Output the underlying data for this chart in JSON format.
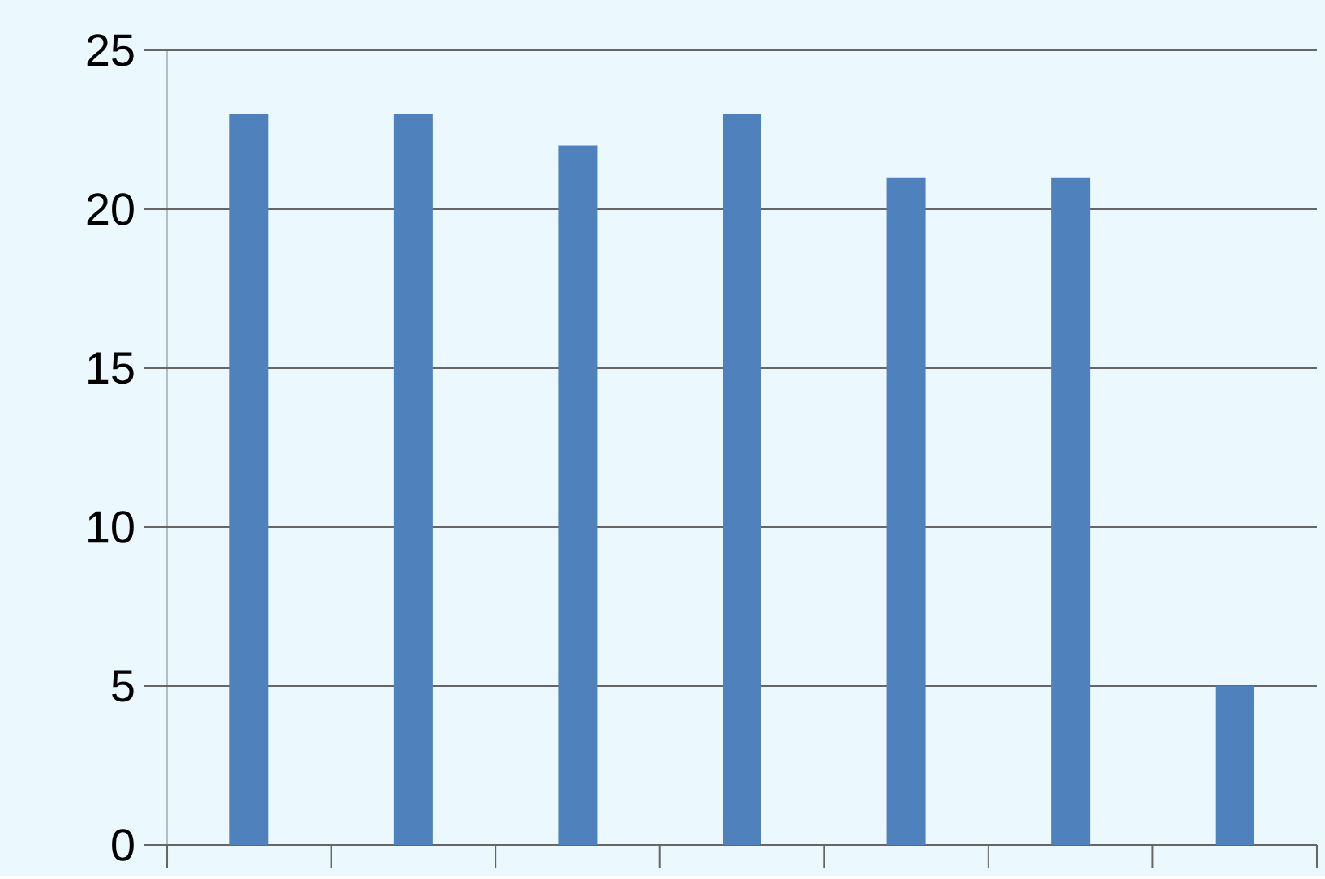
{
  "chart_data": {
    "type": "bar",
    "categories": [
      null,
      null,
      null,
      null,
      null,
      null,
      null
    ],
    "values": [
      23,
      23,
      22,
      23,
      21,
      21,
      5
    ],
    "color": "#4f81bd",
    "ylim": [
      0,
      25
    ],
    "yticks": [
      0,
      5,
      10,
      15,
      20,
      25
    ],
    "grid": "y",
    "tick_labels": "y"
  }
}
